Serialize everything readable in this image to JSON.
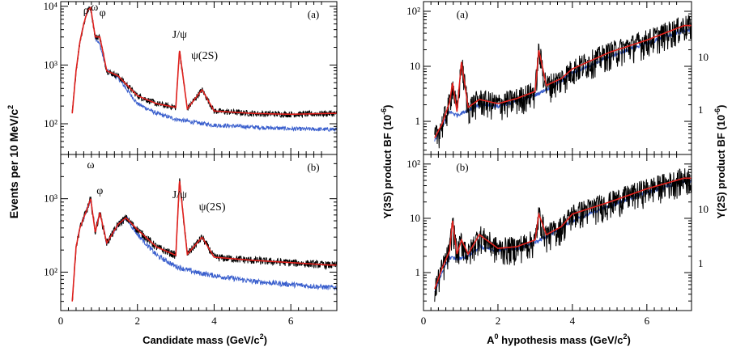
{
  "colors": {
    "data": "#000000",
    "fit": "#e0201c",
    "background": "#3a5fcd",
    "frame": "#000000"
  },
  "left": {
    "xlabel_main": "Candidate mass (GeV/c",
    "xlabel_sup": "2",
    "xlabel_end": ")",
    "ylabel_main": "Events per 10 MeV/c",
    "ylabel_sup": "2",
    "xticks": [
      "0",
      "2",
      "4",
      "6"
    ]
  },
  "right": {
    "xlabel_pre": "A",
    "xlabel_pre_sup": "0",
    "xlabel_main": " hypothesis mass (GeV/c",
    "xlabel_sup": "2",
    "xlabel_end": ")",
    "ylabel_left_main": "Υ(3S) product BF (10",
    "ylabel_left_sup": "-6",
    "ylabel_left_end": ")",
    "ylabel_right_main": "Υ(2S) product BF (10",
    "ylabel_right_sup": "-6",
    "ylabel_right_end": ")",
    "xticks": [
      "0",
      "2",
      "4",
      "6"
    ]
  },
  "chart_data": [
    {
      "type": "line",
      "panel_label": "(a)",
      "xlim": [
        0,
        7.2
      ],
      "ylim": [
        30,
        12000
      ],
      "yscale": "log",
      "yticks": [
        "10²",
        "10³",
        "10⁴"
      ],
      "peak_labels": [
        "ρ",
        "ω",
        "φ",
        "J/ψ",
        "ψ(2S)"
      ],
      "peaks_x": [
        0.77,
        0.78,
        1.02,
        3.097,
        3.686
      ],
      "series": [
        {
          "role": "data",
          "x": [
            0.3,
            0.4,
            0.5,
            0.6,
            0.7,
            0.78,
            0.9,
            1.02,
            1.2,
            1.5,
            2.0,
            2.5,
            3.0,
            3.097,
            3.3,
            3.686,
            4.0,
            5.0,
            6.0,
            7.0
          ],
          "values": [
            150,
            800,
            2500,
            5000,
            8500,
            9500,
            3000,
            3000,
            800,
            650,
            300,
            220,
            190,
            1800,
            180,
            380,
            165,
            150,
            145,
            150
          ]
        },
        {
          "role": "fit",
          "x": [
            0.3,
            0.4,
            0.5,
            0.6,
            0.7,
            0.78,
            0.9,
            1.02,
            1.2,
            1.5,
            2.0,
            2.5,
            3.0,
            3.097,
            3.3,
            3.686,
            4.0,
            5.0,
            6.0,
            7.0
          ],
          "values": [
            150,
            800,
            2500,
            5000,
            8500,
            9500,
            3000,
            3000,
            800,
            650,
            300,
            220,
            190,
            1800,
            180,
            380,
            165,
            150,
            145,
            150
          ]
        },
        {
          "role": "background",
          "x": [
            0.3,
            0.4,
            0.5,
            0.6,
            0.7,
            0.78,
            0.9,
            1.02,
            1.2,
            1.5,
            2.0,
            2.5,
            3.0,
            3.5,
            4.0,
            5.0,
            6.0,
            7.0
          ],
          "values": [
            150,
            800,
            2500,
            5000,
            8500,
            9500,
            3000,
            2200,
            800,
            600,
            220,
            150,
            120,
            105,
            95,
            88,
            82,
            80
          ]
        }
      ]
    },
    {
      "type": "line",
      "panel_label": "(b)",
      "xlim": [
        0,
        7.2
      ],
      "ylim": [
        30,
        4000
      ],
      "yscale": "log",
      "yticks": [
        "10²",
        "10³"
      ],
      "peak_labels": [
        "ω",
        "φ",
        "J/ψ",
        "ψ(2S)"
      ],
      "peaks_x": [
        0.78,
        1.02,
        3.097,
        3.686
      ],
      "series": [
        {
          "role": "data",
          "x": [
            0.3,
            0.4,
            0.5,
            0.6,
            0.7,
            0.78,
            0.9,
            1.02,
            1.2,
            1.5,
            1.7,
            2.0,
            2.5,
            3.0,
            3.097,
            3.3,
            3.686,
            4.0,
            5.0,
            6.0,
            7.0
          ],
          "values": [
            40,
            220,
            400,
            550,
            750,
            1000,
            350,
            650,
            250,
            450,
            550,
            380,
            220,
            170,
            1800,
            175,
            300,
            160,
            145,
            135,
            125
          ]
        },
        {
          "role": "fit",
          "x": [
            0.3,
            0.4,
            0.5,
            0.6,
            0.7,
            0.78,
            0.9,
            1.02,
            1.2,
            1.5,
            1.7,
            2.0,
            2.5,
            3.0,
            3.097,
            3.3,
            3.686,
            4.0,
            5.0,
            6.0,
            7.0
          ],
          "values": [
            40,
            220,
            400,
            550,
            750,
            1000,
            350,
            650,
            250,
            450,
            550,
            380,
            220,
            170,
            1800,
            175,
            300,
            160,
            145,
            135,
            125
          ]
        },
        {
          "role": "background",
          "x": [
            0.3,
            0.4,
            0.5,
            0.6,
            0.7,
            0.78,
            0.9,
            1.02,
            1.2,
            1.5,
            1.7,
            2.0,
            2.5,
            3.0,
            3.5,
            4.0,
            5.0,
            6.0,
            7.0
          ],
          "values": [
            40,
            220,
            400,
            550,
            750,
            1000,
            350,
            650,
            250,
            450,
            550,
            330,
            170,
            120,
            100,
            90,
            75,
            68,
            62
          ]
        }
      ]
    },
    {
      "type": "line",
      "panel_label": "(a)",
      "xlim": [
        0,
        7.2
      ],
      "ylim": [
        0.25,
        150
      ],
      "yscale": "log",
      "yticks": [
        "1",
        "10",
        "10²"
      ],
      "ytitle_right_ticks": [
        "1",
        "10"
      ],
      "series": [
        {
          "role": "data",
          "x": [
            0.3,
            0.5,
            0.7,
            0.78,
            0.9,
            1.02,
            1.2,
            1.5,
            2.0,
            2.5,
            3.0,
            3.097,
            3.3,
            3.7,
            4.0,
            5.0,
            6.0,
            7.0
          ],
          "values": [
            0.5,
            0.9,
            2.2,
            5,
            1.5,
            12,
            1.8,
            2.5,
            2.1,
            2.6,
            3.5,
            20,
            4.5,
            6,
            9,
            18,
            30,
            55
          ]
        },
        {
          "role": "fit",
          "x": [
            0.3,
            0.5,
            0.7,
            0.78,
            0.9,
            1.02,
            1.2,
            1.5,
            2.0,
            2.5,
            3.0,
            3.097,
            3.3,
            3.7,
            4.0,
            5.0,
            6.0,
            7.0
          ],
          "values": [
            0.5,
            0.9,
            2.2,
            5,
            1.5,
            12,
            1.8,
            2.5,
            2.1,
            2.6,
            3.5,
            20,
            4.5,
            6,
            9,
            18,
            30,
            55
          ]
        },
        {
          "role": "background",
          "x": [
            0.3,
            0.5,
            0.7,
            0.9,
            1.2,
            1.5,
            2.0,
            2.5,
            3.0,
            3.5,
            4.0,
            5.0,
            6.0,
            7.0
          ],
          "values": [
            0.45,
            0.8,
            1.5,
            1.3,
            1.6,
            2.0,
            1.9,
            2.3,
            3.0,
            4.5,
            7.5,
            15,
            26,
            45
          ]
        }
      ]
    },
    {
      "type": "line",
      "panel_label": "(b)",
      "xlim": [
        0,
        7.2
      ],
      "ylim": [
        0.2,
        150
      ],
      "yscale": "log",
      "yticks": [
        "1",
        "10",
        "10²"
      ],
      "ytitle_right_ticks": [
        "1",
        "10"
      ],
      "series": [
        {
          "role": "data",
          "x": [
            0.3,
            0.5,
            0.7,
            0.78,
            0.9,
            1.02,
            1.2,
            1.5,
            2.0,
            2.5,
            3.0,
            3.097,
            3.3,
            3.7,
            4.0,
            5.0,
            6.0,
            7.0
          ],
          "values": [
            0.5,
            1.2,
            2.5,
            9,
            2.2,
            4,
            2.2,
            5,
            2.8,
            3,
            4,
            12,
            5,
            7,
            12,
            20,
            35,
            55
          ]
        },
        {
          "role": "fit",
          "x": [
            0.3,
            0.5,
            0.7,
            0.78,
            0.9,
            1.02,
            1.2,
            1.5,
            2.0,
            2.5,
            3.0,
            3.097,
            3.3,
            3.7,
            4.0,
            5.0,
            6.0,
            7.0
          ],
          "values": [
            0.5,
            1.2,
            2.5,
            9,
            2.2,
            4,
            2.2,
            5,
            2.8,
            3,
            4,
            12,
            5,
            7,
            12,
            20,
            35,
            55
          ]
        },
        {
          "role": "background",
          "x": [
            0.3,
            0.5,
            0.7,
            0.9,
            1.2,
            1.5,
            2.0,
            2.5,
            3.0,
            3.5,
            4.0,
            5.0,
            6.0,
            7.0
          ],
          "values": [
            0.45,
            1.0,
            1.9,
            1.8,
            2.0,
            3.0,
            2.6,
            2.8,
            3.6,
            5.5,
            9,
            17,
            30,
            48
          ]
        }
      ]
    }
  ]
}
